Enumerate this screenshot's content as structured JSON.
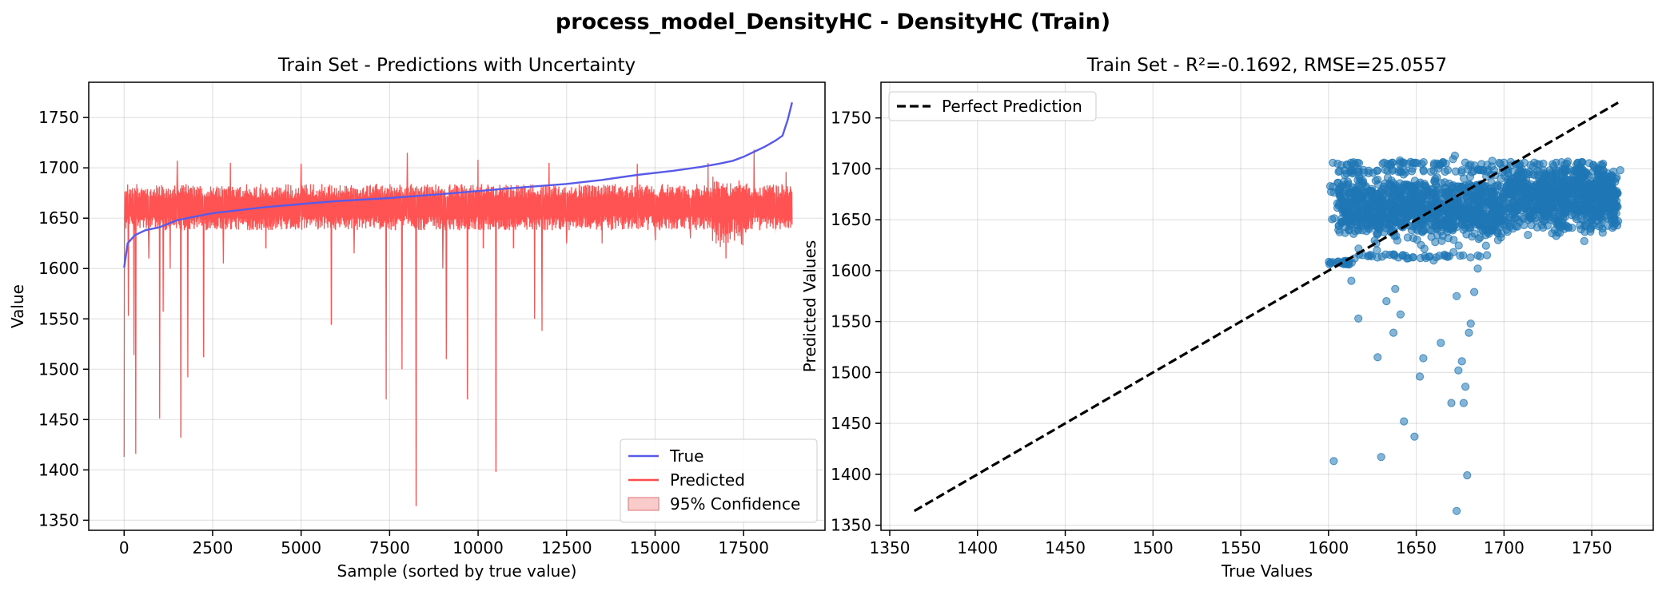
{
  "figure": {
    "suptitle": "process_model_DensityHC - DensityHC (Train)"
  },
  "chart_data": [
    {
      "type": "line",
      "title": "Train Set - Predictions with Uncertainty",
      "xlabel": "Sample (sorted by true value)",
      "ylabel": "Value",
      "xlim": [
        -1000,
        19800
      ],
      "ylim": [
        1340,
        1785
      ],
      "xticks": [
        0,
        2500,
        5000,
        7500,
        10000,
        12500,
        15000,
        17500
      ],
      "yticks": [
        1350,
        1400,
        1450,
        1500,
        1550,
        1600,
        1650,
        1700,
        1750
      ],
      "grid": true,
      "legend_position": "lower-right",
      "series": [
        {
          "name": "True",
          "color": "#5a5ae8",
          "x": [
            0,
            100,
            300,
            600,
            1000,
            1500,
            2500,
            4000,
            5000,
            6000,
            7500,
            9000,
            10000,
            11000,
            12500,
            13500,
            14500,
            15500,
            16300,
            16800,
            17200,
            17500,
            17800,
            18100,
            18400,
            18600,
            18750,
            18870
          ],
          "y": [
            1601,
            1625,
            1633,
            1638,
            1641,
            1648,
            1655,
            1661,
            1664,
            1667,
            1670,
            1674,
            1677,
            1680,
            1684,
            1688,
            1693,
            1697,
            1701,
            1704,
            1707,
            1711,
            1716,
            1721,
            1727,
            1732,
            1748,
            1765
          ]
        },
        {
          "name": "Predicted",
          "color": "#ff4a4a",
          "band_low": 1638,
          "band_high": 1684,
          "dips": [
            {
              "x": 0,
              "y": 1413
            },
            {
              "x": 120,
              "y": 1553
            },
            {
              "x": 280,
              "y": 1514
            },
            {
              "x": 330,
              "y": 1416
            },
            {
              "x": 700,
              "y": 1610
            },
            {
              "x": 1000,
              "y": 1451
            },
            {
              "x": 1100,
              "y": 1557
            },
            {
              "x": 1300,
              "y": 1600
            },
            {
              "x": 1600,
              "y": 1432
            },
            {
              "x": 1800,
              "y": 1492
            },
            {
              "x": 2250,
              "y": 1512
            },
            {
              "x": 2800,
              "y": 1605
            },
            {
              "x": 4000,
              "y": 1620
            },
            {
              "x": 5000,
              "y": 1610
            },
            {
              "x": 5850,
              "y": 1544
            },
            {
              "x": 6500,
              "y": 1615
            },
            {
              "x": 7400,
              "y": 1470
            },
            {
              "x": 7850,
              "y": 1500
            },
            {
              "x": 8250,
              "y": 1364
            },
            {
              "x": 9000,
              "y": 1600
            },
            {
              "x": 9100,
              "y": 1510
            },
            {
              "x": 9700,
              "y": 1470
            },
            {
              "x": 10150,
              "y": 1620
            },
            {
              "x": 10500,
              "y": 1398
            },
            {
              "x": 11000,
              "y": 1620
            },
            {
              "x": 11600,
              "y": 1550
            },
            {
              "x": 11800,
              "y": 1538
            },
            {
              "x": 12500,
              "y": 1625
            },
            {
              "x": 13500,
              "y": 1625
            },
            {
              "x": 15000,
              "y": 1628
            },
            {
              "x": 16000,
              "y": 1630
            },
            {
              "x": 17000,
              "y": 1610
            },
            {
              "x": 17300,
              "y": 1635
            },
            {
              "x": 18400,
              "y": 1640
            }
          ],
          "spikes": [
            {
              "x": 1500,
              "y": 1707
            },
            {
              "x": 3000,
              "y": 1705
            },
            {
              "x": 5000,
              "y": 1704
            },
            {
              "x": 8000,
              "y": 1715
            },
            {
              "x": 10000,
              "y": 1708
            },
            {
              "x": 12000,
              "y": 1705
            },
            {
              "x": 14500,
              "y": 1704
            },
            {
              "x": 16500,
              "y": 1705
            },
            {
              "x": 17800,
              "y": 1718
            },
            {
              "x": 18700,
              "y": 1696
            }
          ]
        },
        {
          "name": "95% Confidence",
          "color": "#f4a0a0"
        }
      ]
    },
    {
      "type": "scatter",
      "title": "Train Set - R²=-0.1692, RMSE=25.0557",
      "xlabel": "True Values",
      "ylabel": "Predicted Values",
      "xlim": [
        1345,
        1785
      ],
      "ylim": [
        1345,
        1785
      ],
      "xticks": [
        1350,
        1400,
        1450,
        1500,
        1550,
        1600,
        1650,
        1700,
        1750
      ],
      "yticks": [
        1350,
        1400,
        1450,
        1500,
        1550,
        1600,
        1650,
        1700,
        1750
      ],
      "grid": true,
      "legend_position": "top-left",
      "reference_line": {
        "name": "Perfect Prediction",
        "from": [
          1364,
          1364
        ],
        "to": [
          1765,
          1765
        ],
        "color": "#000000"
      },
      "point_color": "#1f77b4",
      "dense_region": {
        "x": [
          1600,
          1765
        ],
        "y": [
          1605,
          1705
        ]
      },
      "outliers": [
        {
          "x": 1603,
          "y": 1413
        },
        {
          "x": 1630,
          "y": 1417
        },
        {
          "x": 1617,
          "y": 1553
        },
        {
          "x": 1628,
          "y": 1515
        },
        {
          "x": 1633,
          "y": 1570
        },
        {
          "x": 1637,
          "y": 1539
        },
        {
          "x": 1638,
          "y": 1582
        },
        {
          "x": 1641,
          "y": 1557
        },
        {
          "x": 1643,
          "y": 1452
        },
        {
          "x": 1649,
          "y": 1437
        },
        {
          "x": 1652,
          "y": 1496
        },
        {
          "x": 1654,
          "y": 1514
        },
        {
          "x": 1664,
          "y": 1529
        },
        {
          "x": 1670,
          "y": 1470
        },
        {
          "x": 1673,
          "y": 1364
        },
        {
          "x": 1673,
          "y": 1575
        },
        {
          "x": 1674,
          "y": 1502
        },
        {
          "x": 1676,
          "y": 1511
        },
        {
          "x": 1677,
          "y": 1470
        },
        {
          "x": 1678,
          "y": 1486
        },
        {
          "x": 1679,
          "y": 1399
        },
        {
          "x": 1680,
          "y": 1539
        },
        {
          "x": 1681,
          "y": 1548
        },
        {
          "x": 1683,
          "y": 1579
        },
        {
          "x": 1685,
          "y": 1602
        },
        {
          "x": 1672,
          "y": 1713
        },
        {
          "x": 1613,
          "y": 1590
        }
      ]
    }
  ]
}
